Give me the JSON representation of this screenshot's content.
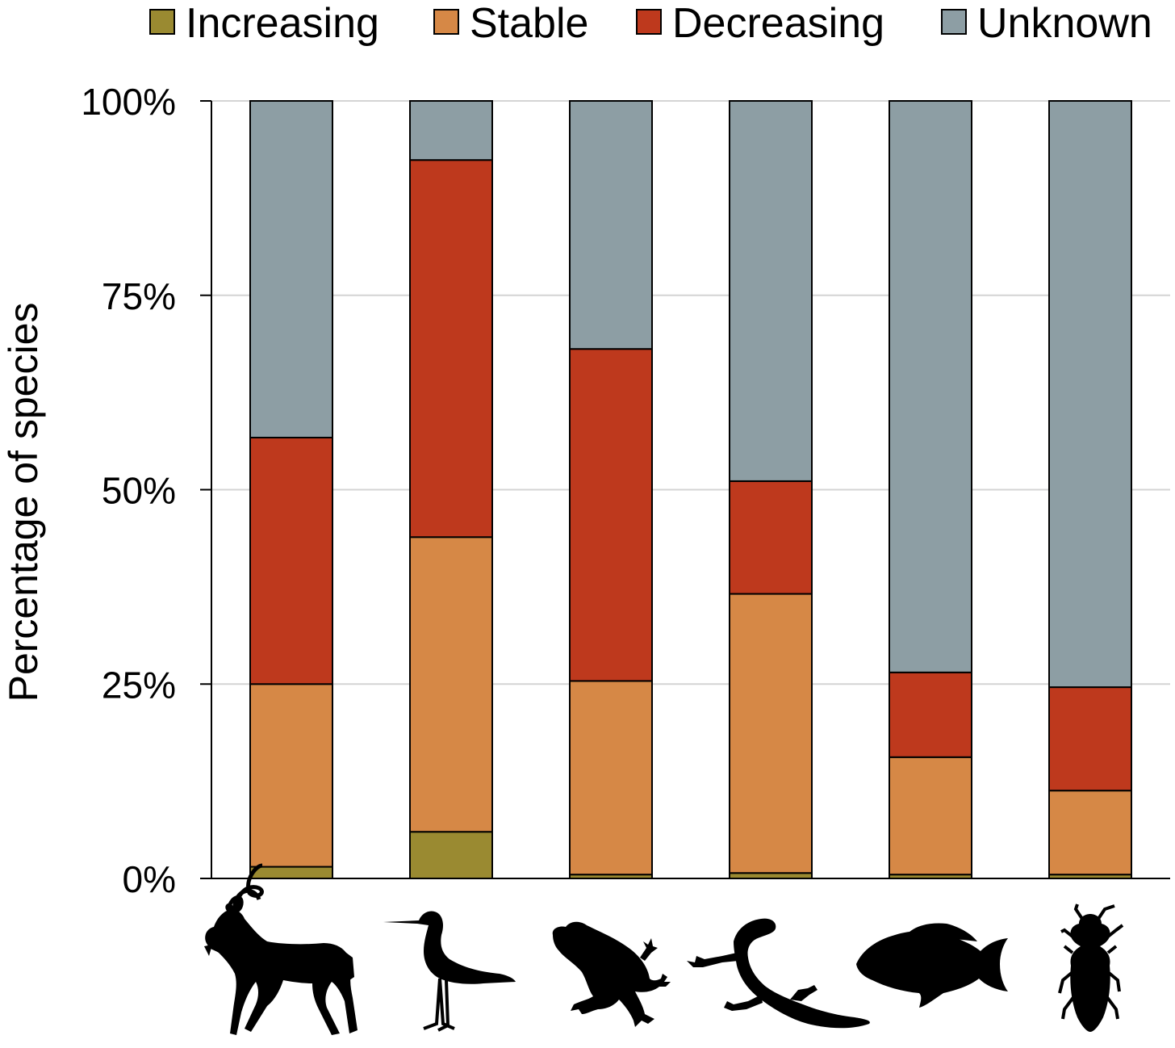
{
  "chart_data": {
    "type": "bar",
    "stacked": true,
    "normalized_percent": true,
    "categories": [
      "mammals",
      "birds",
      "amphibians",
      "reptiles",
      "fishes",
      "insects"
    ],
    "category_icons": [
      "antelope-icon",
      "bird-icon",
      "frog-icon",
      "lizard-icon",
      "fish-icon",
      "beetle-icon"
    ],
    "series": [
      {
        "name": "Increasing",
        "color": "#9a8a31",
        "values": [
          1.5,
          6.0,
          0.5,
          0.7,
          0.5,
          0.5
        ]
      },
      {
        "name": "Stable",
        "color": "#d68846",
        "values": [
          23.5,
          37.9,
          24.9,
          35.9,
          15.1,
          10.8
        ]
      },
      {
        "name": "Decreasing",
        "color": "#be391d",
        "values": [
          31.7,
          48.5,
          42.7,
          14.5,
          10.9,
          13.3
        ]
      },
      {
        "name": "Unknown",
        "color": "#8d9ea4",
        "values": [
          43.3,
          7.6,
          31.9,
          48.9,
          73.5,
          75.4
        ]
      }
    ],
    "ylabel": "Percentage of species",
    "yticks": [
      "0%",
      "25%",
      "50%",
      "75%",
      "100%"
    ],
    "ytick_values": [
      0,
      25,
      50,
      75,
      100
    ],
    "ylim": [
      0,
      100
    ],
    "grid": true,
    "legend_position": "top"
  }
}
